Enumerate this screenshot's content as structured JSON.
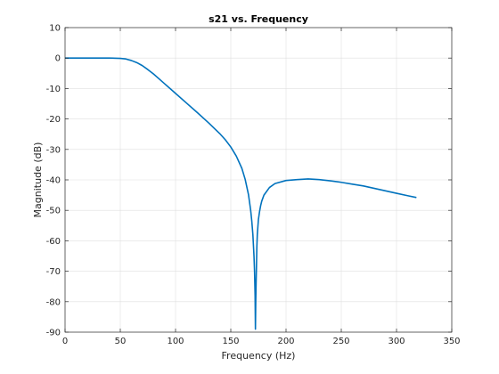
{
  "chart_data": {
    "type": "line",
    "title": "s21 vs. Frequency",
    "xlabel": "Frequency (Hz)",
    "ylabel": "Magnitude (dB)",
    "xlim": [
      0,
      350
    ],
    "ylim": [
      -90,
      10
    ],
    "xticks": [
      0,
      50,
      100,
      150,
      200,
      250,
      300,
      350
    ],
    "yticks": [
      10,
      0,
      -10,
      -20,
      -30,
      -40,
      -50,
      -60,
      -70,
      -80,
      -90
    ],
    "xtick_labels": [
      "0",
      "50",
      "100",
      "150",
      "200",
      "250",
      "300",
      "350"
    ],
    "ytick_labels": [
      "10",
      "0",
      "-10",
      "-20",
      "-30",
      "-40",
      "-50",
      "-60",
      "-70",
      "-80",
      "-90"
    ],
    "grid": true,
    "series": [
      {
        "color": "#0072bd",
        "x": [
          0,
          20,
          40,
          50,
          55,
          60,
          65,
          70,
          75,
          80,
          85,
          90,
          95,
          100,
          110,
          120,
          130,
          140,
          145,
          150,
          155,
          160,
          163,
          166,
          168,
          169,
          170,
          171,
          171.5,
          172,
          172.3,
          172.6,
          172.9,
          173.2,
          173.6,
          174,
          175,
          176,
          177,
          178,
          180,
          185,
          190,
          200,
          210,
          220,
          230,
          240,
          250,
          260,
          270,
          280,
          290,
          300,
          310,
          318
        ],
        "y": [
          0,
          0,
          0,
          -0.1,
          -0.3,
          -0.8,
          -1.5,
          -2.5,
          -3.8,
          -5.2,
          -6.8,
          -8.4,
          -10,
          -11.6,
          -14.8,
          -18,
          -21.3,
          -24.8,
          -26.8,
          -29.2,
          -32.2,
          -36.2,
          -39.8,
          -44.8,
          -50,
          -53.5,
          -58,
          -65,
          -70,
          -78,
          -89,
          -80,
          -74,
          -69,
          -62,
          -58,
          -53,
          -50.5,
          -48.5,
          -47,
          -45,
          -42.5,
          -41.2,
          -40.2,
          -39.9,
          -39.7,
          -39.9,
          -40.3,
          -40.8,
          -41.4,
          -42,
          -42.8,
          -43.6,
          -44.4,
          -45.2,
          -45.8
        ]
      }
    ]
  }
}
